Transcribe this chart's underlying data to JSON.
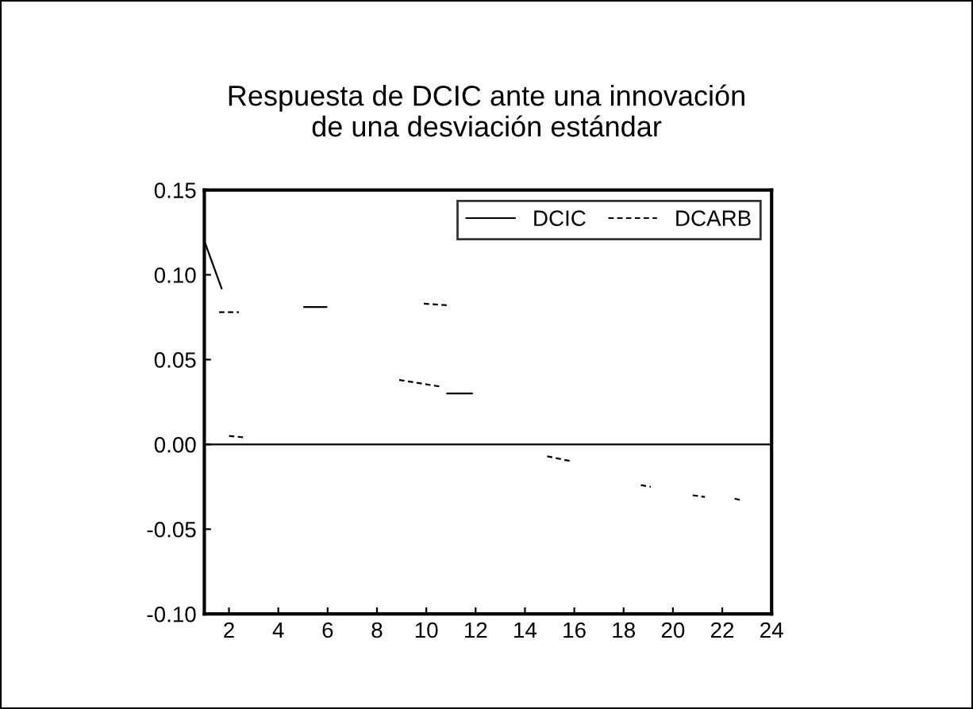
{
  "chart_data": {
    "type": "line",
    "title": "Respuesta de DCIC ante una innovación\nde una desviación estándar",
    "series": [
      {
        "name": "DCIC",
        "color": "#000000",
        "line_style": "solid",
        "x": [
          1.0,
          1.7,
          null,
          5.05,
          5.95,
          null,
          10.85,
          11.85
        ],
        "values": [
          0.12,
          0.092,
          null,
          0.081,
          0.081,
          null,
          0.03,
          0.03
        ]
      },
      {
        "name": "DCARB",
        "color": "#000000",
        "line_style": "dashed",
        "x": [
          1.6,
          2.4,
          null,
          2.0,
          2.7,
          null,
          9.9,
          10.9,
          null,
          8.9,
          10.6,
          null,
          14.9,
          15.9,
          null,
          18.7,
          19.1,
          null,
          20.8,
          21.3,
          null,
          22.5,
          22.8
        ],
        "values": [
          0.078,
          0.078,
          null,
          0.005,
          0.004,
          null,
          0.083,
          0.082,
          null,
          0.038,
          0.034,
          null,
          -0.007,
          -0.01,
          null,
          -0.024,
          -0.025,
          null,
          -0.03,
          -0.031,
          null,
          -0.032,
          -0.033
        ]
      }
    ],
    "xlim": [
      1,
      24
    ],
    "xticks": [
      2,
      4,
      6,
      8,
      10,
      12,
      14,
      16,
      18,
      20,
      22,
      24
    ],
    "ylim": [
      -0.1,
      0.15
    ],
    "yticks": [
      {
        "value": -0.1,
        "label": "-0.10"
      },
      {
        "value": -0.05,
        "label": "-0.05"
      },
      {
        "value": 0,
        "label": "0.00"
      },
      {
        "value": 0.05,
        "label": "0.05"
      },
      {
        "value": 0.1,
        "label": "0.10"
      },
      {
        "value": 0.15,
        "label": "0.15"
      }
    ],
    "ref_lines": [
      {
        "axis": "y",
        "value": 0,
        "label": null,
        "color": "#000000"
      }
    ],
    "legend": "top right",
    "grid": false
  }
}
